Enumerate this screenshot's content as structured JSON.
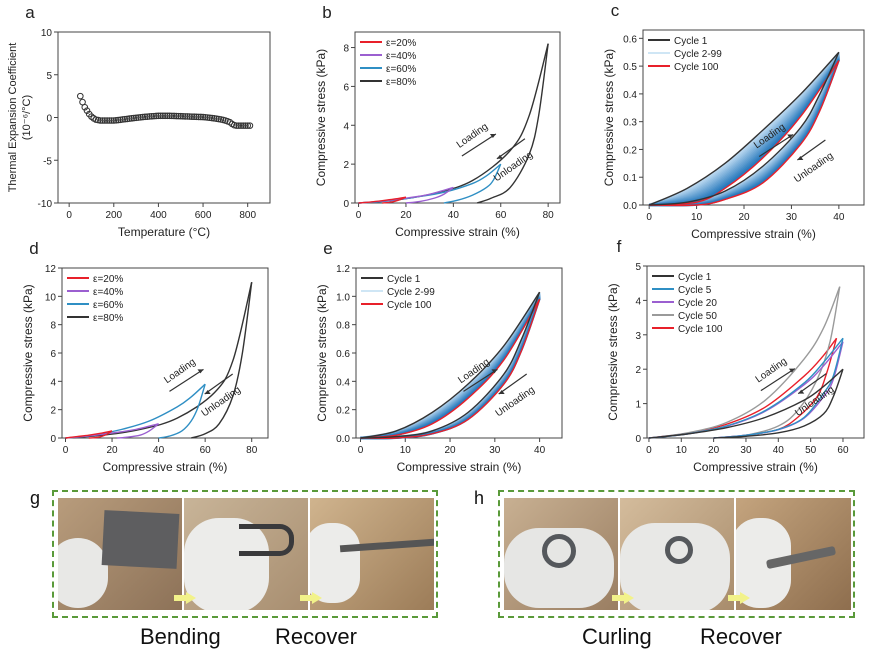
{
  "chart_data": [
    {
      "panel": "a",
      "type": "scatter",
      "xlabel": "Temperature (°C)",
      "ylabel": "Thermal Expansion Coefficient",
      "ylabel2": "(10⁻⁶/°C)",
      "xlim": [
        -50,
        900
      ],
      "ylim": [
        -10,
        10
      ],
      "xticks": [
        0,
        200,
        400,
        600,
        800
      ],
      "yticks": [
        -10,
        -5,
        0,
        5,
        10
      ],
      "marker": "open-circle",
      "legend": [],
      "series": [
        {
          "color": "#333333",
          "x": [
            50,
            60,
            70,
            80,
            90,
            100,
            110,
            120,
            130,
            140,
            150,
            160,
            170,
            180,
            190,
            200,
            210,
            220,
            230,
            240,
            250,
            260,
            270,
            280,
            290,
            300,
            310,
            320,
            330,
            340,
            350,
            360,
            370,
            380,
            390,
            400,
            410,
            420,
            430,
            440,
            450,
            460,
            470,
            480,
            490,
            500,
            510,
            520,
            530,
            540,
            550,
            560,
            570,
            580,
            590,
            600,
            610,
            620,
            630,
            640,
            650,
            660,
            670,
            680,
            690,
            700,
            710,
            720,
            730,
            740,
            750,
            760,
            770,
            780,
            790,
            800,
            810
          ],
          "y": [
            2.5,
            1.8,
            1.2,
            0.8,
            0.4,
            0.1,
            -0.1,
            -0.25,
            -0.3,
            -0.35,
            -0.35,
            -0.35,
            -0.35,
            -0.35,
            -0.35,
            -0.35,
            -0.33,
            -0.3,
            -0.27,
            -0.23,
            -0.2,
            -0.17,
            -0.13,
            -0.1,
            -0.07,
            -0.04,
            -0.01,
            0.02,
            0.05,
            0.08,
            0.1,
            0.12,
            0.14,
            0.16,
            0.18,
            0.2,
            0.2,
            0.2,
            0.2,
            0.2,
            0.2,
            0.19,
            0.18,
            0.17,
            0.16,
            0.15,
            0.14,
            0.13,
            0.12,
            0.11,
            0.1,
            0.09,
            0.08,
            0.07,
            0.06,
            0.05,
            0.03,
            0.0,
            -0.03,
            -0.07,
            -0.1,
            -0.14,
            -0.18,
            -0.23,
            -0.28,
            -0.35,
            -0.45,
            -0.55,
            -0.75,
            -0.9,
            -0.95,
            -0.95,
            -0.95,
            -0.95,
            -0.95,
            -0.95,
            -0.95
          ]
        }
      ]
    },
    {
      "panel": "b",
      "type": "line",
      "xlabel": "Compressive strain (%)",
      "ylabel": "Compressive stress (kPa)",
      "xlim": [
        -1.5,
        85
      ],
      "ylim": [
        0,
        8.8
      ],
      "xticks": [
        0,
        20,
        40,
        60,
        80
      ],
      "yticks": [
        0,
        2,
        4,
        6,
        8
      ],
      "annotations": {
        "loading": "Loading",
        "unloading": "Unloading"
      },
      "series": [
        {
          "name": "ε=20%",
          "color": "#e8202a",
          "loading": {
            "x": [
              0,
              5,
              10,
              15,
              20
            ],
            "y": [
              0,
              0.05,
              0.12,
              0.2,
              0.3
            ]
          },
          "unloading": {
            "x": [
              20,
              17,
              14,
              10
            ],
            "y": [
              0.3,
              0.15,
              0.05,
              0
            ]
          }
        },
        {
          "name": "ε=40%",
          "color": "#9b5fd0",
          "loading": {
            "x": [
              0,
              10,
              20,
              30,
              40
            ],
            "y": [
              0,
              0.1,
              0.25,
              0.45,
              0.8
            ]
          },
          "unloading": {
            "x": [
              40,
              36,
              32,
              26,
              20
            ],
            "y": [
              0.8,
              0.45,
              0.25,
              0.08,
              0
            ]
          }
        },
        {
          "name": "ε=60%",
          "color": "#2f8fc4",
          "loading": {
            "x": [
              0,
              12,
              24,
              36,
              48,
              54,
              60
            ],
            "y": [
              0,
              0.1,
              0.3,
              0.55,
              1.0,
              1.4,
              2.0
            ]
          },
          "unloading": {
            "x": [
              60,
              57,
              54,
              48,
              42,
              36
            ],
            "y": [
              2.0,
              1.2,
              0.8,
              0.4,
              0.15,
              0
            ]
          }
        },
        {
          "name": "ε=80%",
          "color": "#333333",
          "loading": {
            "x": [
              0,
              16,
              32,
              48,
              64,
              72,
              80
            ],
            "y": [
              0,
              0.16,
              0.5,
              1.15,
              2.7,
              4.5,
              8.2
            ]
          },
          "unloading": {
            "x": [
              80,
              76,
              72,
              64,
              56,
              50
            ],
            "y": [
              8.2,
              4.5,
              2.5,
              0.8,
              0.25,
              0
            ]
          }
        }
      ]
    },
    {
      "panel": "c",
      "type": "line",
      "xlabel": "Compressive strain (%)",
      "ylabel": "Compressive stress (kPa)",
      "xlim": [
        -1.3,
        45.3
      ],
      "ylim": [
        0,
        0.63
      ],
      "xticks": [
        0,
        10,
        20,
        30,
        40
      ],
      "yticks": [
        0.0,
        0.1,
        0.2,
        0.3,
        0.4,
        0.5,
        0.6
      ],
      "ytick_decimals": 1,
      "annotations": {
        "loading": "Loading",
        "unloading": "Unloading"
      },
      "band": {
        "name": "Cycle 2-99",
        "color": "#cfe6f5",
        "fill_color": "#1f77b4"
      },
      "series": [
        {
          "name": "Cycle 1",
          "color": "#333333",
          "loading": {
            "x": [
              0,
              8,
              16,
              24,
              32,
              40
            ],
            "y": [
              0,
              0.06,
              0.15,
              0.27,
              0.4,
              0.55
            ]
          },
          "unloading": {
            "x": [
              40,
              36,
              32,
              24,
              16,
              8,
              0
            ],
            "y": [
              0.55,
              0.4,
              0.28,
              0.14,
              0.05,
              0.01,
              0
            ]
          }
        },
        {
          "name": "Cycle 100",
          "color": "#e8202a",
          "loading": {
            "x": [
              0,
              10,
              16,
              24,
              32,
              40
            ],
            "y": [
              0,
              0.01,
              0.06,
              0.17,
              0.32,
              0.52
            ]
          },
          "unloading": {
            "x": [
              40,
              36,
              32,
              24,
              16,
              10,
              0
            ],
            "y": [
              0.52,
              0.34,
              0.22,
              0.08,
              0.02,
              0,
              0
            ]
          }
        }
      ]
    },
    {
      "panel": "d",
      "type": "line",
      "xlabel": "Compressive strain (%)",
      "ylabel": "Compressive stress (kPa)",
      "xlim": [
        -1.5,
        87
      ],
      "ylim": [
        0,
        12
      ],
      "xticks": [
        0,
        20,
        40,
        60,
        80
      ],
      "yticks": [
        0,
        2,
        4,
        6,
        8,
        10,
        12
      ],
      "annotations": {
        "loading": "Loading",
        "unloading": "Unloading"
      },
      "series": [
        {
          "name": "ε=20%",
          "color": "#e8202a",
          "loading": {
            "x": [
              0,
              5,
              10,
              15,
              20
            ],
            "y": [
              0,
              0.1,
              0.2,
              0.33,
              0.5
            ]
          },
          "unloading": {
            "x": [
              20,
              17,
              14,
              10
            ],
            "y": [
              0.5,
              0.2,
              0.05,
              0
            ]
          }
        },
        {
          "name": "ε=40%",
          "color": "#9b5fd0",
          "loading": {
            "x": [
              0,
              10,
              20,
              30,
              40
            ],
            "y": [
              0,
              0.15,
              0.35,
              0.6,
              1.0
            ]
          },
          "unloading": {
            "x": [
              40,
              36,
              32,
              26,
              22
            ],
            "y": [
              1.0,
              0.5,
              0.2,
              0.05,
              0
            ]
          }
        },
        {
          "name": "ε=60%",
          "color": "#2f8fc4",
          "loading": {
            "x": [
              0,
              12,
              24,
              36,
              48,
              54,
              60
            ],
            "y": [
              0,
              0.2,
              0.6,
              1.2,
              2.2,
              2.9,
              3.8
            ]
          },
          "unloading": {
            "x": [
              60,
              57,
              54,
              50,
              45,
              40
            ],
            "y": [
              3.8,
              2.2,
              1.2,
              0.5,
              0.15,
              0
            ]
          }
        },
        {
          "name": "ε=80%",
          "color": "#333333",
          "loading": {
            "x": [
              0,
              16,
              32,
              48,
              64,
              72,
              80
            ],
            "y": [
              0,
              0.2,
              0.6,
              1.4,
              3.2,
              5.5,
              11
            ]
          },
          "unloading": {
            "x": [
              80,
              76,
              72,
              66,
              60,
              54
            ],
            "y": [
              11,
              6,
              3,
              1,
              0.3,
              0
            ]
          }
        }
      ]
    },
    {
      "panel": "e",
      "type": "line",
      "xlabel": "Compressive strain (%)",
      "ylabel": "Compressive stress (kPa)",
      "xlim": [
        -1,
        45
      ],
      "ylim": [
        0,
        1.2
      ],
      "xticks": [
        0,
        10,
        20,
        30,
        40
      ],
      "yticks": [
        0.0,
        0.2,
        0.4,
        0.6,
        0.8,
        1.0,
        1.2
      ],
      "ytick_decimals": 1,
      "annotations": {
        "loading": "Loading",
        "unloading": "Unloading"
      },
      "band": {
        "name": "Cycle 2-99",
        "color": "#cfe6f5",
        "fill_color": "#1f77b4"
      },
      "series": [
        {
          "name": "Cycle 1",
          "color": "#333333",
          "loading": {
            "x": [
              0,
              8,
              16,
              24,
              32,
              40
            ],
            "y": [
              0,
              0.05,
              0.18,
              0.38,
              0.65,
              1.03
            ]
          },
          "unloading": {
            "x": [
              40,
              36,
              32,
              24,
              16,
              8,
              0
            ],
            "y": [
              1.03,
              0.7,
              0.45,
              0.18,
              0.05,
              0.01,
              0
            ]
          }
        },
        {
          "name": "Cycle 100",
          "color": "#e8202a",
          "loading": {
            "x": [
              0,
              8,
              16,
              24,
              32,
              40
            ],
            "y": [
              0,
              0.02,
              0.1,
              0.28,
              0.55,
              0.98
            ]
          },
          "unloading": {
            "x": [
              40,
              36,
              32,
              24,
              16,
              8,
              0
            ],
            "y": [
              0.98,
              0.62,
              0.38,
              0.13,
              0.03,
              0,
              0
            ]
          }
        }
      ]
    },
    {
      "panel": "f",
      "type": "line",
      "xlabel": "Compressive strain (%)",
      "ylabel": "Compressive stress (kPa)",
      "xlim": [
        -0.6,
        66.5
      ],
      "ylim": [
        0,
        5
      ],
      "xticks": [
        0,
        10,
        20,
        30,
        40,
        50,
        60
      ],
      "yticks": [
        0,
        1,
        2,
        3,
        4,
        5
      ],
      "annotations": {
        "loading": "Loading",
        "unloading": "Unloading"
      },
      "series": [
        {
          "name": "Cycle 1",
          "color": "#333333",
          "loading": {
            "x": [
              0,
              12,
              24,
              36,
              48,
              54,
              60
            ],
            "y": [
              0,
              0.12,
              0.3,
              0.6,
              1.1,
              1.5,
              2.0
            ]
          },
          "unloading": {
            "x": [
              60,
              57,
              54,
              48,
              40,
              30,
              20
            ],
            "y": [
              2.0,
              1.2,
              0.7,
              0.35,
              0.15,
              0.05,
              0
            ]
          }
        },
        {
          "name": "Cycle 5",
          "color": "#2f8fc4",
          "loading": {
            "x": [
              0,
              12,
              24,
              36,
              48,
              54,
              60
            ],
            "y": [
              0,
              0.12,
              0.35,
              0.8,
              1.6,
              2.2,
              2.9
            ]
          },
          "unloading": {
            "x": [
              60,
              57,
              54,
              48,
              40,
              30,
              20
            ],
            "y": [
              2.9,
              1.8,
              1.3,
              0.6,
              0.25,
              0.08,
              0
            ]
          }
        },
        {
          "name": "Cycle 20",
          "color": "#9b5fd0",
          "loading": {
            "x": [
              0,
              12,
              24,
              36,
              48,
              54,
              60
            ],
            "y": [
              0,
              0.12,
              0.34,
              0.78,
              1.55,
              2.1,
              2.8
            ]
          },
          "unloading": {
            "x": [
              60,
              57,
              54,
              48,
              40,
              30,
              20
            ],
            "y": [
              2.8,
              1.7,
              1.2,
              0.58,
              0.24,
              0.08,
              0
            ]
          }
        },
        {
          "name": "Cycle 50",
          "color": "#9a9a9a",
          "loading": {
            "x": [
              0,
              12,
              24,
              36,
              48,
              54,
              59
            ],
            "y": [
              0,
              0.15,
              0.45,
              1.1,
              2.3,
              3.2,
              4.4
            ]
          },
          "unloading": {
            "x": [
              59,
              56,
              52,
              46,
              40,
              30,
              20
            ],
            "y": [
              4.4,
              2.8,
              1.7,
              0.8,
              0.35,
              0.08,
              0
            ]
          }
        },
        {
          "name": "Cycle 100",
          "color": "#e8202a",
          "loading": {
            "x": [
              0,
              12,
              24,
              36,
              48,
              54,
              58
            ],
            "y": [
              0,
              0.14,
              0.4,
              0.9,
              1.8,
              2.4,
              2.9
            ]
          },
          "unloading": {
            "x": [
              58,
              55,
              52,
              46,
              40,
              30,
              20
            ],
            "y": [
              2.9,
              1.9,
              1.2,
              0.6,
              0.25,
              0.08,
              0
            ]
          }
        }
      ]
    }
  ],
  "photos": {
    "g": {
      "letter": "g",
      "captions": [
        "Bending",
        "Recover"
      ]
    },
    "h": {
      "letter": "h",
      "captions": [
        "Curling",
        "Recover"
      ]
    }
  },
  "colors": {
    "frame_dash": "#5a9a3a",
    "arrow": "#f2f28a"
  }
}
